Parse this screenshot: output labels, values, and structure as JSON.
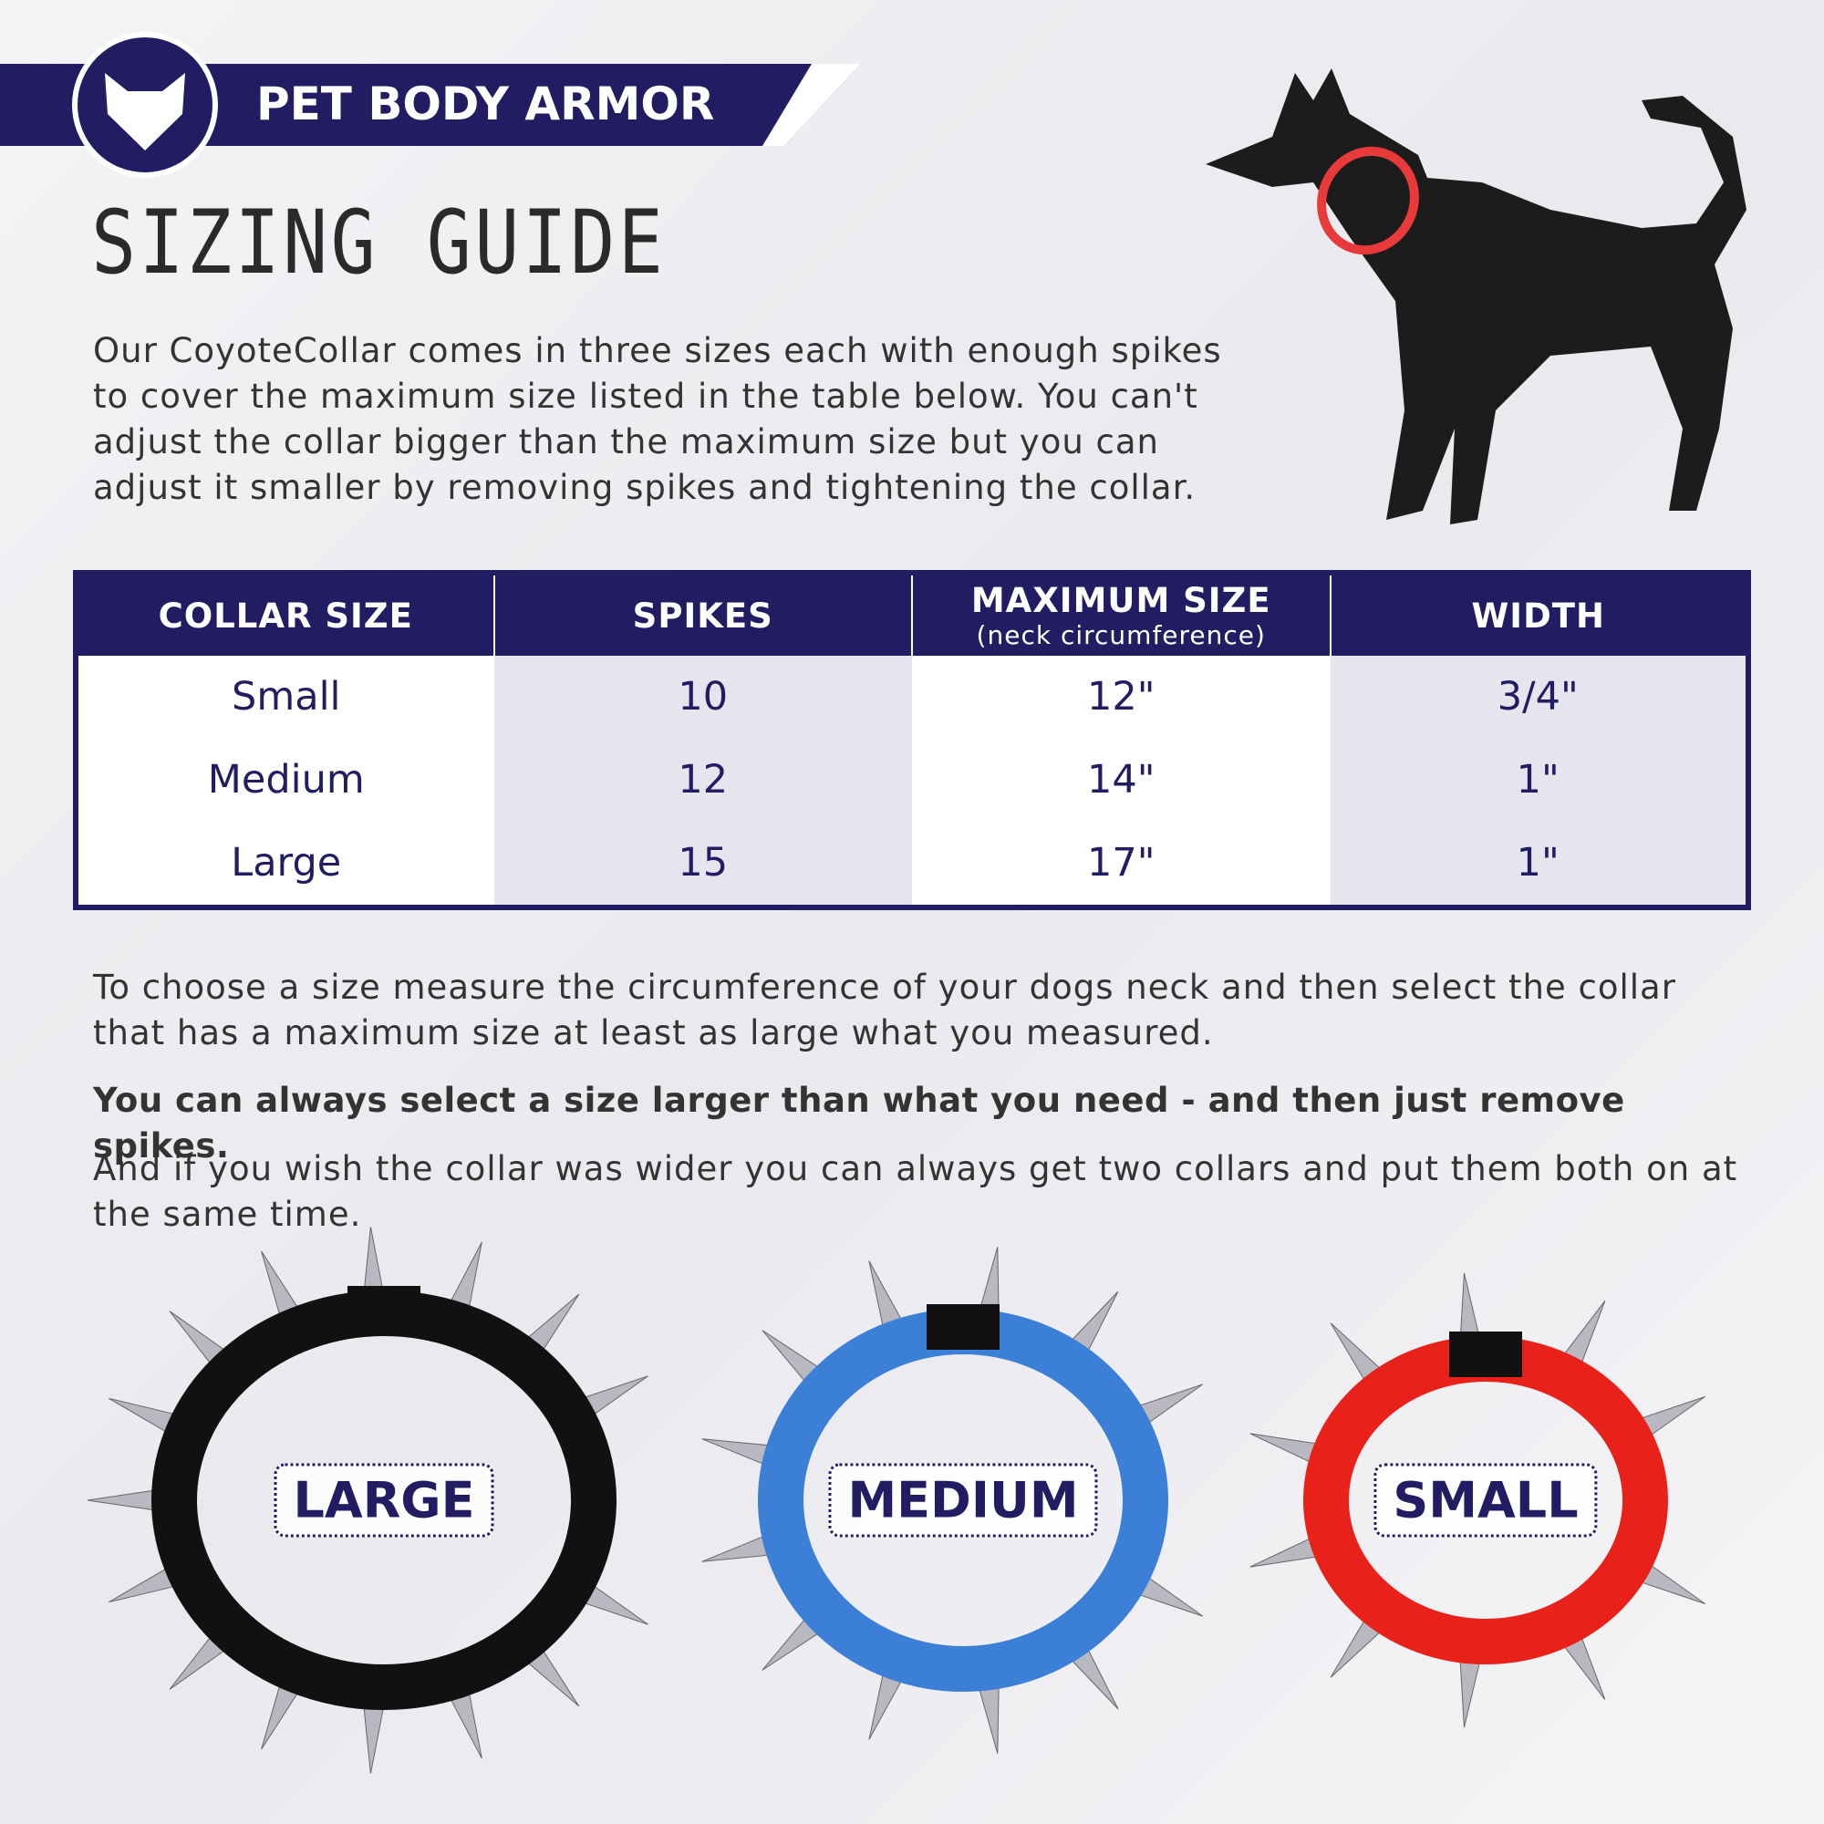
{
  "brand": "PET BODY ARMOR",
  "title": "SIZING GUIDE",
  "intro": "Our CoyoteCollar comes in three sizes each with enough spikes to cover the maximum size listed in the table below. You can't adjust the collar bigger than the maximum size but you can adjust it smaller by removing spikes and tightening the collar.",
  "table": {
    "headers": [
      "COLLAR SIZE",
      "SPIKES",
      "MAXIMUM SIZE",
      "WIDTH"
    ],
    "subheader": "(neck circumference)",
    "rows": [
      [
        "Small",
        "10",
        "12\"",
        "3/4\""
      ],
      [
        "Medium",
        "12",
        "14\"",
        "1\""
      ],
      [
        "Large",
        "15",
        "17\"",
        "1\""
      ]
    ]
  },
  "paragraphs": [
    "To choose a size measure the circumference of your dogs neck and then select the collar that has a maximum size at least as large what you measured.",
    "You can always select a size larger than what you need - and then just remove spikes.",
    "And if you wish the collar was wider you can always get two collars and put them both on at the same time."
  ],
  "collars": [
    "LARGE",
    "MEDIUM",
    "SMALL"
  ]
}
